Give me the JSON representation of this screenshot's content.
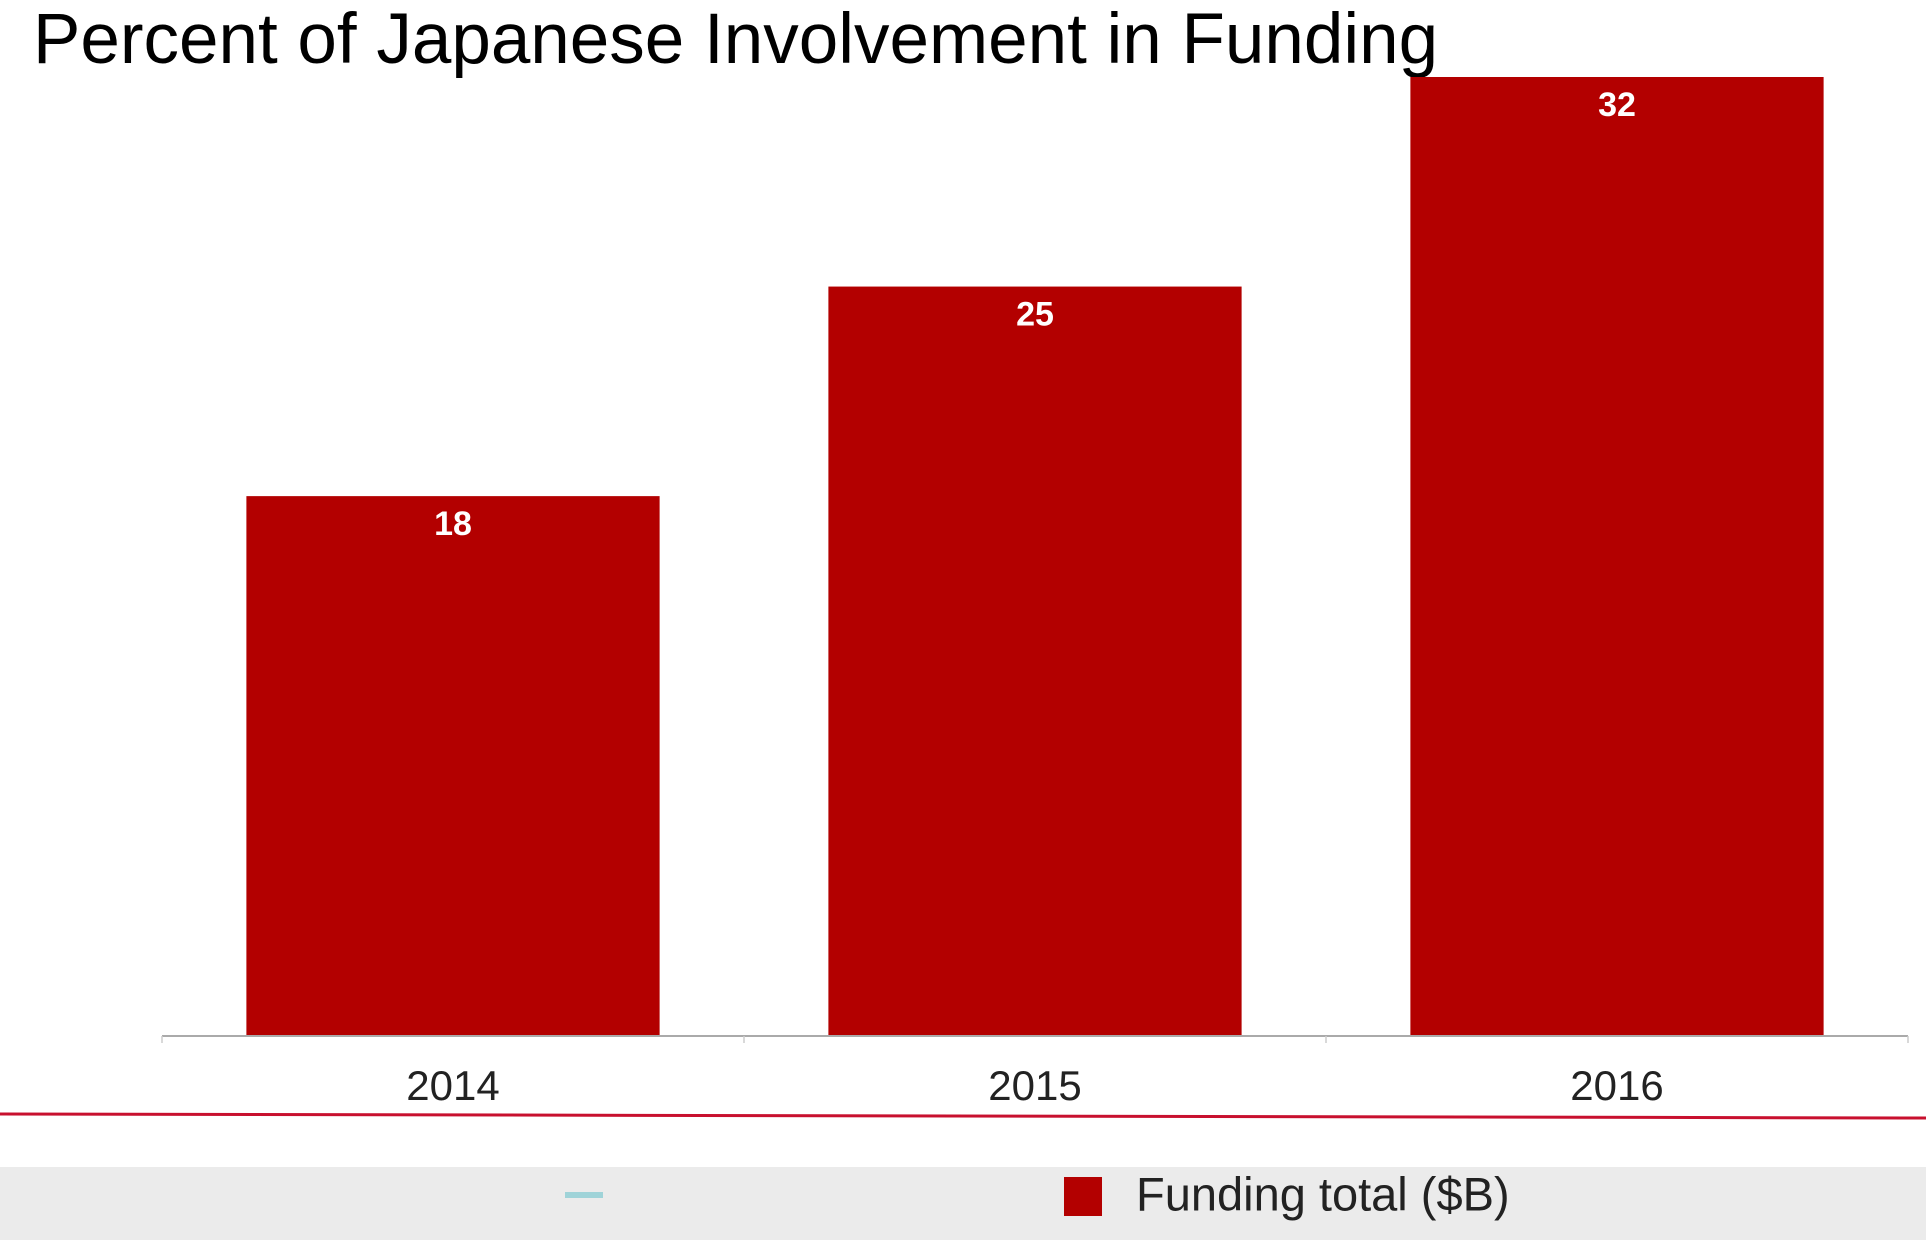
{
  "chart_data": {
    "type": "bar",
    "title": "Percent of Japanese Involvement in Funding",
    "categories": [
      "2014",
      "2015",
      "2016"
    ],
    "series": [
      {
        "name": "Funding total ($B)",
        "color": "#b30000",
        "values": [
          18,
          25,
          32
        ]
      }
    ],
    "legend": "bottom"
  }
}
